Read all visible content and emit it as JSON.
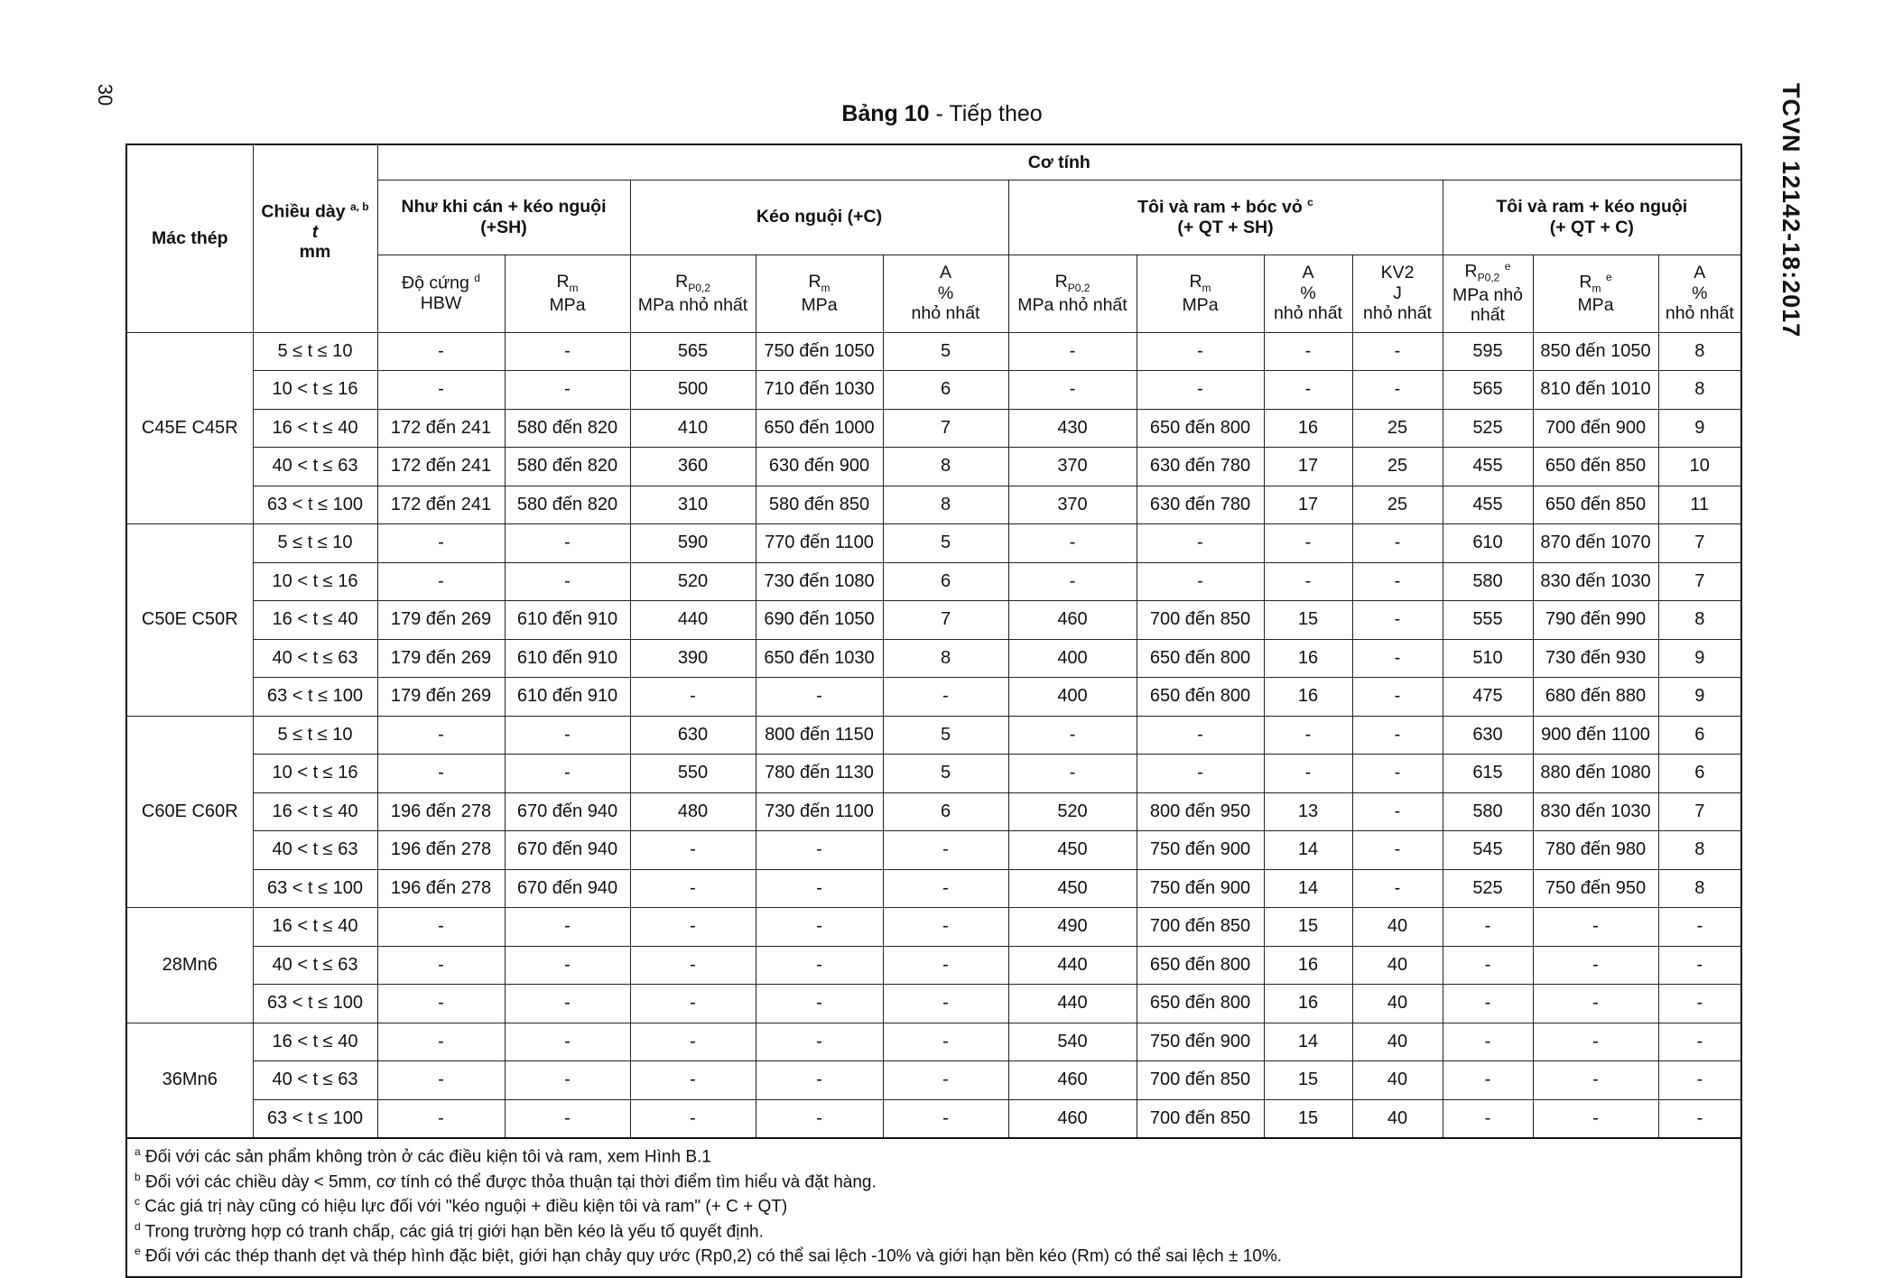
{
  "page_number": "30",
  "title_bold": "Bảng 10",
  "title_rest": " - Tiếp theo",
  "side_label": "TCVN 12142-18:2017",
  "header": {
    "grade": "Mác thép",
    "thickness": "Chiều dày",
    "thickness_sup": "a, b",
    "thickness_sym": "t",
    "thickness_unit": "mm",
    "mech": "Cơ tính",
    "groups": [
      {
        "label": "Như khi cán + kéo nguội",
        "code": "(+SH)"
      },
      {
        "label": "Kéo nguội (+C)",
        "code": ""
      },
      {
        "label": "Tôi và ram + bóc vỏ",
        "sup": "c",
        "code": "(+ QT + SH)"
      },
      {
        "label": "Tôi và ram + kéo nguội",
        "code": "(+ QT + C)"
      }
    ],
    "sub": [
      [
        "Độ cứng",
        "d",
        "HBW"
      ],
      [
        "Rm",
        "",
        "MPa"
      ],
      [
        "Rp0,2",
        "",
        "MPa nhỏ nhất"
      ],
      [
        "Rm",
        "",
        "MPa"
      ],
      [
        "A",
        "%",
        "nhỏ nhất"
      ],
      [
        "Rp0,2",
        "",
        "MPa nhỏ nhất"
      ],
      [
        "Rm",
        "",
        "MPa"
      ],
      [
        "A",
        "%",
        "nhỏ nhất"
      ],
      [
        "KV2",
        "J",
        "nhỏ nhất"
      ],
      [
        "Rp0,2",
        "e",
        "MPa nhỏ nhất"
      ],
      [
        "Rm",
        "e",
        "MPa"
      ],
      [
        "A",
        "%",
        "nhỏ nhất"
      ]
    ]
  },
  "groups": [
    {
      "grade": "C45E C45R",
      "rows": [
        [
          "5 ≤ t ≤ 10",
          "-",
          "-",
          "565",
          "750 đến 1050",
          "5",
          "-",
          "-",
          "-",
          "-",
          "595",
          "850 đến 1050",
          "8"
        ],
        [
          "10 < t ≤ 16",
          "-",
          "-",
          "500",
          "710 đến 1030",
          "6",
          "-",
          "-",
          "-",
          "-",
          "565",
          "810 đến 1010",
          "8"
        ],
        [
          "16 < t ≤ 40",
          "172 đến 241",
          "580 đến 820",
          "410",
          "650 đến 1000",
          "7",
          "430",
          "650 đến 800",
          "16",
          "25",
          "525",
          "700 đến 900",
          "9"
        ],
        [
          "40 < t ≤ 63",
          "172 đến 241",
          "580 đến 820",
          "360",
          "630 đến 900",
          "8",
          "370",
          "630 đến 780",
          "17",
          "25",
          "455",
          "650 đến 850",
          "10"
        ],
        [
          "63 < t ≤ 100",
          "172 đến 241",
          "580 đến 820",
          "310",
          "580 đến 850",
          "8",
          "370",
          "630 đến 780",
          "17",
          "25",
          "455",
          "650 đến 850",
          "11"
        ]
      ]
    },
    {
      "grade": "C50E C50R",
      "rows": [
        [
          "5 ≤ t ≤ 10",
          "-",
          "-",
          "590",
          "770 đến 1100",
          "5",
          "-",
          "-",
          "-",
          "-",
          "610",
          "870 đến 1070",
          "7"
        ],
        [
          "10 < t ≤ 16",
          "-",
          "-",
          "520",
          "730 đến 1080",
          "6",
          "-",
          "-",
          "-",
          "-",
          "580",
          "830 đến 1030",
          "7"
        ],
        [
          "16 < t ≤ 40",
          "179 đến 269",
          "610 đến 910",
          "440",
          "690 đến 1050",
          "7",
          "460",
          "700 đến 850",
          "15",
          "-",
          "555",
          "790 đến 990",
          "8"
        ],
        [
          "40 < t ≤ 63",
          "179 đến 269",
          "610 đến 910",
          "390",
          "650 đến 1030",
          "8",
          "400",
          "650 đến 800",
          "16",
          "-",
          "510",
          "730 đến 930",
          "9"
        ],
        [
          "63 < t ≤ 100",
          "179 đến 269",
          "610 đến 910",
          "-",
          "-",
          "-",
          "400",
          "650 đến 800",
          "16",
          "-",
          "475",
          "680 đến 880",
          "9"
        ]
      ]
    },
    {
      "grade": "C60E C60R",
      "rows": [
        [
          "5 ≤ t ≤ 10",
          "-",
          "-",
          "630",
          "800 đến 1150",
          "5",
          "-",
          "-",
          "-",
          "-",
          "630",
          "900 đến 1100",
          "6"
        ],
        [
          "10 < t ≤ 16",
          "-",
          "-",
          "550",
          "780 đến 1130",
          "5",
          "-",
          "-",
          "-",
          "-",
          "615",
          "880 đến 1080",
          "6"
        ],
        [
          "16 < t ≤ 40",
          "196 đến 278",
          "670 đến 940",
          "480",
          "730 đến 1100",
          "6",
          "520",
          "800 đến 950",
          "13",
          "-",
          "580",
          "830 đến 1030",
          "7"
        ],
        [
          "40 < t ≤ 63",
          "196 đến 278",
          "670 đến 940",
          "-",
          "-",
          "-",
          "450",
          "750 đến 900",
          "14",
          "-",
          "545",
          "780 đến 980",
          "8"
        ],
        [
          "63 < t ≤ 100",
          "196 đến 278",
          "670 đến 940",
          "-",
          "-",
          "-",
          "450",
          "750 đến 900",
          "14",
          "-",
          "525",
          "750 đến 950",
          "8"
        ]
      ]
    },
    {
      "grade": "28Mn6",
      "rows": [
        [
          "16 < t ≤ 40",
          "-",
          "-",
          "-",
          "-",
          "-",
          "490",
          "700 đến 850",
          "15",
          "40",
          "-",
          "-",
          "-"
        ],
        [
          "40 < t ≤ 63",
          "-",
          "-",
          "-",
          "-",
          "-",
          "440",
          "650 đến 800",
          "16",
          "40",
          "-",
          "-",
          "-"
        ],
        [
          "63 < t ≤ 100",
          "-",
          "-",
          "-",
          "-",
          "-",
          "440",
          "650 đến 800",
          "16",
          "40",
          "-",
          "-",
          "-"
        ]
      ]
    },
    {
      "grade": "36Mn6",
      "rows": [
        [
          "16 < t ≤ 40",
          "-",
          "-",
          "-",
          "-",
          "-",
          "540",
          "750 đến 900",
          "14",
          "40",
          "-",
          "-",
          "-"
        ],
        [
          "40 < t ≤ 63",
          "-",
          "-",
          "-",
          "-",
          "-",
          "460",
          "700 đến 850",
          "15",
          "40",
          "-",
          "-",
          "-"
        ],
        [
          "63 < t ≤ 100",
          "-",
          "-",
          "-",
          "-",
          "-",
          "460",
          "700 đến 850",
          "15",
          "40",
          "-",
          "-",
          "-"
        ]
      ]
    }
  ],
  "footnotes": [
    {
      "mark": "a",
      "text": "Đối với các sản phẩm không tròn ở các điều kiện tôi và ram, xem Hình B.1"
    },
    {
      "mark": "b",
      "text": "Đối với các chiều dày < 5mm, cơ tính có thể được thỏa thuận tại thời điểm tìm hiểu và đặt hàng."
    },
    {
      "mark": "c",
      "text": "Các giá trị này cũng có hiệu lực đối với \"kéo nguội + điều kiện tôi và ram\" (+ C + QT)"
    },
    {
      "mark": "d",
      "text": "Trong trường hợp có tranh chấp, các giá trị giới hạn bền kéo là yếu tố quyết định."
    },
    {
      "mark": "e",
      "text": "Đối với các thép thanh dẹt và thép hình đặc biệt, giới hạn chảy quy ước (Rp0,2) có thể sai lệch -10% và giới hạn bền kéo (Rm) có thể sai lệch ± 10%."
    }
  ]
}
